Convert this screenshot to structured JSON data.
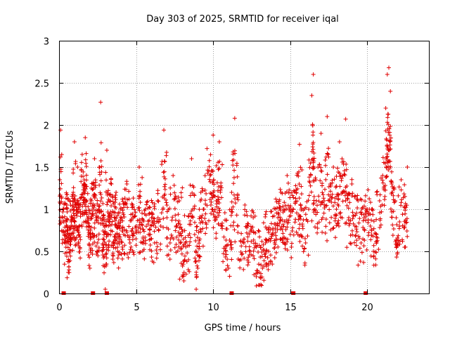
{
  "chart_data": {
    "type": "scatter",
    "title": "Day 303 of 2025, SRMTID for receiver iqal",
    "xlabel": "GPS time / hours",
    "ylabel": "SRMTID / TECUs",
    "xlim": [
      0,
      24
    ],
    "ylim": [
      0,
      3
    ],
    "xticks": [
      0,
      5,
      10,
      15,
      20
    ],
    "xtick_labels": [
      "0",
      "5",
      "10",
      "15",
      "20"
    ],
    "yticks": [
      0,
      0.5,
      1,
      1.5,
      2,
      2.5,
      3
    ],
    "ytick_labels": [
      "0",
      "0.5",
      "1",
      "1.5",
      "2",
      "2.5",
      "3"
    ],
    "grid": true,
    "marker": "+",
    "series": [
      {
        "name": "SRMTID",
        "color": "#e00000",
        "note": "About 2400 scattered '+' points; representative values read from the plot. Dense band 0.3-1.3 TECU, dips near 8 h, 9 h and 12.5-13 h, spikes to ~2.6 TECU near 16.4 h and 21.4 h.",
        "x": [
          0.05,
          0.1,
          0.2,
          0.3,
          0.4,
          0.5,
          0.6,
          0.7,
          0.8,
          0.9,
          1.0,
          1.1,
          1.2,
          1.3,
          1.4,
          1.5,
          1.6,
          1.7,
          1.8,
          1.9,
          2.0,
          2.1,
          2.2,
          2.3,
          2.4,
          2.5,
          2.6,
          2.7,
          2.8,
          2.9,
          3.0,
          3.1,
          3.2,
          3.3,
          3.4,
          3.5,
          3.6,
          3.7,
          3.8,
          3.9,
          4.0,
          4.2,
          4.4,
          4.6,
          4.8,
          5.0,
          5.2,
          5.4,
          5.6,
          5.8,
          6.0,
          6.2,
          6.4,
          6.6,
          6.8,
          7.0,
          7.2,
          7.4,
          7.6,
          7.8,
          8.0,
          8.1,
          8.2,
          8.4,
          8.6,
          8.8,
          8.9,
          9.0,
          9.2,
          9.4,
          9.6,
          9.8,
          10.0,
          10.1,
          10.2,
          10.4,
          10.6,
          10.8,
          11.0,
          11.2,
          11.4,
          11.6,
          11.8,
          12.0,
          12.2,
          12.4,
          12.6,
          12.8,
          13.0,
          13.2,
          13.4,
          13.6,
          13.8,
          14.0,
          14.2,
          14.4,
          14.6,
          14.8,
          15.0,
          15.2,
          15.4,
          15.6,
          15.8,
          16.0,
          16.2,
          16.4,
          16.5,
          16.6,
          16.8,
          17.0,
          17.2,
          17.4,
          17.6,
          17.8,
          18.0,
          18.2,
          18.4,
          18.6,
          18.8,
          19.0,
          19.2,
          19.4,
          19.6,
          19.8,
          20.0,
          20.2,
          20.4,
          20.6,
          20.8,
          21.0,
          21.2,
          21.3,
          21.4,
          21.5,
          21.6,
          21.8,
          22.0,
          22.2,
          22.4,
          22.6
        ],
        "y": [
          1.35,
          1.94,
          0.9,
          1.0,
          0.6,
          1.05,
          0.25,
          0.7,
          0.85,
          1.1,
          1.8,
          0.8,
          1.5,
          0.7,
          0.95,
          1.65,
          1.2,
          1.85,
          1.1,
          0.8,
          0.3,
          1.25,
          0.7,
          1.6,
          0.9,
          0.6,
          1.0,
          2.27,
          0.5,
          0.9,
          0.05,
          1.7,
          0.8,
          1.1,
          1.3,
          0.6,
          0.9,
          1.2,
          0.5,
          0.8,
          1.0,
          0.7,
          1.3,
          0.6,
          0.9,
          0.8,
          1.5,
          0.6,
          1.0,
          0.7,
          0.9,
          0.6,
          1.1,
          0.8,
          1.94,
          0.9,
          0.6,
          1.4,
          0.8,
          1.1,
          0.2,
          0.15,
          0.6,
          0.4,
          1.6,
          0.7,
          0.05,
          0.3,
          1.2,
          1.0,
          1.72,
          1.4,
          1.88,
          0.9,
          1.1,
          1.8,
          0.8,
          0.5,
          0.3,
          1.2,
          2.08,
          0.8,
          0.4,
          0.6,
          0.8,
          0.5,
          0.9,
          0.2,
          0.1,
          0.3,
          0.6,
          0.5,
          0.7,
          0.6,
          0.9,
          1.2,
          0.6,
          1.4,
          0.7,
          1.0,
          1.2,
          1.77,
          0.8,
          0.6,
          1.0,
          2.35,
          2.6,
          1.0,
          1.5,
          1.9,
          1.1,
          2.1,
          1.3,
          1.5,
          1.0,
          1.8,
          1.2,
          2.07,
          0.9,
          1.3,
          0.8,
          1.1,
          0.6,
          0.9,
          1.0,
          0.8,
          0.5,
          0.7,
          1.1,
          1.4,
          2.2,
          2.6,
          2.68,
          2.4,
          1.2,
          1.1,
          0.6,
          1.35,
          0.8,
          1.5
        ]
      }
    ],
    "baseline_markers_x": [
      0.3,
      2.2,
      3.1,
      11.2,
      15.2,
      19.9
    ]
  }
}
